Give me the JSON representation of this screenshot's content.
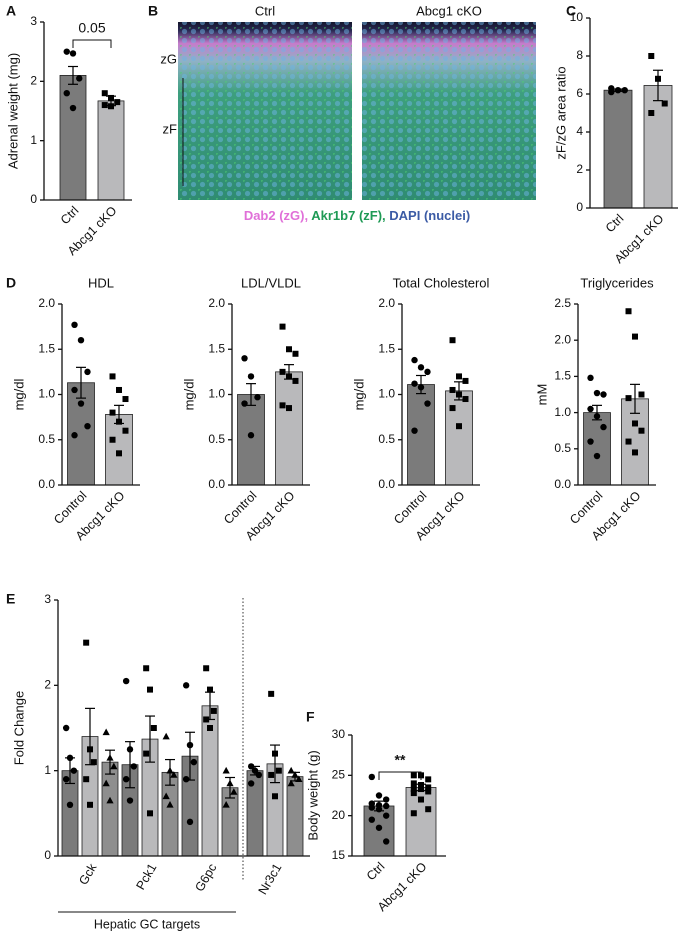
{
  "image_panel": {
    "panel": "B",
    "columns": [
      "Ctrl",
      "Abcg1 cKO"
    ],
    "zones": [
      "zG",
      "zF"
    ],
    "legend": [
      {
        "text": "Dab2 (zG),",
        "color": "#e070d8"
      },
      {
        "text": "Akr1b7 (zF),",
        "color": "#1f9a55"
      },
      {
        "text": "DAPI (nuclei)",
        "color": "#3b5ba5"
      }
    ]
  },
  "chart_data": [
    {
      "type": "bar",
      "panel": "A",
      "ylabel": "Adrenal weight (mg)",
      "categories": [
        "Ctrl",
        "Abcg1 cKO"
      ],
      "values": [
        2.1,
        1.67
      ],
      "errors": [
        0.15,
        0.08
      ],
      "colors": [
        "#7b7b7b",
        "#b9b9bb"
      ],
      "markers": [
        "circle",
        "square"
      ],
      "points": [
        [
          2.5,
          2.47,
          2.05,
          1.8,
          1.55
        ],
        [
          1.8,
          1.72,
          1.65,
          1.6,
          1.58
        ]
      ],
      "ylim": [
        0,
        3
      ],
      "yticks": [
        0,
        1,
        2,
        3
      ],
      "annotation": "0.05"
    },
    {
      "type": "bar",
      "panel": "C",
      "ylabel": "zF/zG area ratio",
      "categories": [
        "Ctrl",
        "Abcg1 cKO"
      ],
      "values": [
        6.2,
        6.45
      ],
      "errors": [
        0.06,
        0.8
      ],
      "colors": [
        "#7b7b7b",
        "#b9b9bb"
      ],
      "markers": [
        "circle",
        "square"
      ],
      "points": [
        [
          6.1,
          6.2,
          6.2,
          6.3
        ],
        [
          8.0,
          6.8,
          5.5,
          5.0
        ]
      ],
      "ylim": [
        0,
        10
      ],
      "yticks": [
        0,
        2,
        4,
        6,
        8,
        10
      ]
    },
    {
      "type": "bar",
      "panel": "D",
      "title": "HDL",
      "ylabel": "mg/dl",
      "categories": [
        "Control",
        "Abcg1 cKO"
      ],
      "values": [
        1.13,
        0.78
      ],
      "errors": [
        0.17,
        0.1
      ],
      "colors": [
        "#7b7b7b",
        "#b9b9bb"
      ],
      "markers": [
        "circle",
        "square"
      ],
      "points": [
        [
          1.77,
          1.6,
          1.25,
          1.05,
          0.9,
          0.65,
          0.55
        ],
        [
          1.2,
          1.05,
          0.95,
          0.8,
          0.7,
          0.6,
          0.5,
          0.35
        ]
      ],
      "ylim": [
        0,
        2
      ],
      "yticks": [
        {
          "value": 0,
          "label": "0.0"
        },
        0.5,
        {
          "value": 1,
          "label": "1.0"
        },
        1.5,
        {
          "value": 2,
          "label": "2.0"
        }
      ]
    },
    {
      "type": "bar",
      "title": "LDL/VLDL",
      "ylabel": "mg/dl",
      "categories": [
        "Control",
        "Abcg1 cKO"
      ],
      "values": [
        1.0,
        1.25
      ],
      "errors": [
        0.12,
        0.08
      ],
      "colors": [
        "#7b7b7b",
        "#b9b9bb"
      ],
      "markers": [
        "circle",
        "square"
      ],
      "points": [
        [
          1.4,
          1.2,
          0.97,
          0.9,
          0.55
        ],
        [
          1.75,
          1.5,
          1.45,
          1.25,
          1.2,
          1.15,
          0.88,
          0.85
        ]
      ],
      "ylim": [
        0,
        2
      ],
      "yticks": [
        {
          "value": 0,
          "label": "0.0"
        },
        0.5,
        {
          "value": 1,
          "label": "1.0"
        },
        1.5,
        {
          "value": 2,
          "label": "2.0"
        }
      ]
    },
    {
      "type": "bar",
      "title": "Total Cholesterol",
      "ylabel": "mg/dl",
      "categories": [
        "Control",
        "Abcg1 cKO"
      ],
      "values": [
        1.11,
        1.04
      ],
      "errors": [
        0.1,
        0.1
      ],
      "colors": [
        "#7b7b7b",
        "#b9b9bb"
      ],
      "markers": [
        "circle",
        "square"
      ],
      "points": [
        [
          1.38,
          1.3,
          1.25,
          1.12,
          1.08,
          0.9,
          0.6
        ],
        [
          1.6,
          1.2,
          1.15,
          1.05,
          1.0,
          0.95,
          0.85,
          0.65
        ]
      ],
      "ylim": [
        0,
        2
      ],
      "yticks": [
        {
          "value": 0,
          "label": "0.0"
        },
        0.5,
        {
          "value": 1,
          "label": "1.0"
        },
        1.5,
        {
          "value": 2,
          "label": "2.0"
        }
      ]
    },
    {
      "type": "bar",
      "title": "Triglycerides",
      "ylabel": "mM",
      "categories": [
        "Control",
        "Abcg1 cKO"
      ],
      "values": [
        1.0,
        1.19
      ],
      "errors": [
        0.1,
        0.2
      ],
      "colors": [
        "#7b7b7b",
        "#b9b9bb"
      ],
      "markers": [
        "circle",
        "square"
      ],
      "points": [
        [
          1.48,
          1.27,
          1.25,
          1.05,
          0.95,
          0.8,
          0.6,
          0.4
        ],
        [
          2.4,
          2.05,
          1.25,
          1.2,
          0.85,
          0.75,
          0.6,
          0.45
        ]
      ],
      "ylim": [
        0,
        2.5
      ],
      "yticks": [
        {
          "value": 0,
          "label": "0.0"
        },
        0.5,
        {
          "value": 1,
          "label": "1.0"
        },
        1.5,
        {
          "value": 2,
          "label": "2.0"
        },
        2.5
      ]
    },
    {
      "type": "bar",
      "panel": "E",
      "ylabel": "Fold Change",
      "categories": [
        "Gck",
        "Pck1",
        "G6pc",
        "Nr3c1"
      ],
      "group_label": "Hepatic GC targets",
      "series": [
        {
          "color": "#7b7b7b",
          "marker": "circle",
          "values": [
            1.0,
            1.07,
            1.17,
            1.0
          ],
          "errors": [
            0.15,
            0.27,
            0.28,
            0.05
          ],
          "points": [
            [
              1.5,
              1.15,
              1.0,
              0.9,
              0.6
            ],
            [
              2.05,
              1.25,
              1.05,
              0.9,
              0.65
            ],
            [
              2.0,
              1.3,
              1.1,
              0.9,
              0.4
            ],
            [
              1.05,
              1.0,
              0.95,
              0.85
            ]
          ]
        },
        {
          "color": "#b9b9bb",
          "marker": "square",
          "values": [
            1.4,
            1.37,
            1.76,
            1.08
          ],
          "errors": [
            0.33,
            0.27,
            0.16,
            0.22
          ],
          "points": [
            [
              2.5,
              1.25,
              1.1,
              0.9,
              0.6
            ],
            [
              2.2,
              1.95,
              1.5,
              1.2,
              0.5
            ],
            [
              2.2,
              1.95,
              1.7,
              1.6,
              1.5
            ],
            [
              1.9,
              1.2,
              1.0,
              0.95,
              0.7
            ]
          ]
        },
        {
          "color": "#8e8e8e",
          "marker": "triangle",
          "values": [
            1.1,
            0.98,
            0.8,
            0.93
          ],
          "errors": [
            0.14,
            0.15,
            0.12,
            0.05
          ],
          "points": [
            [
              1.45,
              1.15,
              1.05,
              0.85,
              0.65
            ],
            [
              1.4,
              1.0,
              0.95,
              0.7,
              0.6
            ],
            [
              1.0,
              0.85,
              0.75,
              0.6
            ],
            [
              1.0,
              0.95,
              0.9,
              0.85
            ]
          ]
        }
      ],
      "ylim": [
        0,
        3
      ],
      "yticks": [
        0,
        1,
        2,
        3
      ]
    },
    {
      "type": "bar",
      "panel": "F",
      "ylabel": "Body weight (g)",
      "categories": [
        "Ctrl",
        "Abcg1 cKO"
      ],
      "values": [
        21.2,
        23.5
      ],
      "errors": [
        0.6,
        0.4
      ],
      "colors": [
        "#7b7b7b",
        "#b9b9bb"
      ],
      "markers": [
        "circle",
        "square"
      ],
      "points": [
        [
          24.8,
          22.5,
          22.0,
          21.5,
          21.3,
          21.2,
          21.0,
          20.8,
          20.0,
          19.5,
          18.5,
          16.8
        ],
        [
          25.0,
          25.0,
          24.5,
          24.0,
          23.8,
          23.5,
          23.3,
          23.3,
          23.0,
          22.8,
          22.0,
          20.8,
          20.3
        ]
      ],
      "ylim": [
        15,
        30
      ],
      "yticks": [
        15,
        20,
        25,
        30
      ],
      "annotation": "**"
    }
  ]
}
